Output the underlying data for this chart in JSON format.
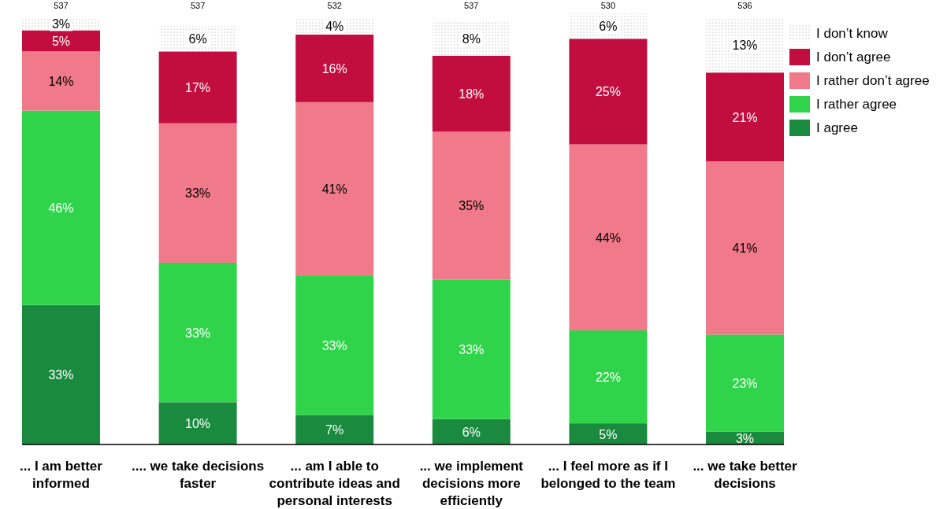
{
  "chart_data": {
    "type": "bar",
    "stacked": true,
    "legend": "top right",
    "tick_labels": "x",
    "categories": [
      "... I am better informed",
      ".... we take decisions faster",
      "... am I able to contribute ideas and personal interests",
      "... we implement decisions more efficiently",
      "... I feel more as if I belonged to the team",
      "... we take better decisions"
    ],
    "series": [
      {
        "name": "I agree",
        "color": "#1a8a3e",
        "values": [
          33,
          10,
          7,
          6,
          5,
          3
        ],
        "value_labels": [
          "33%",
          "10%",
          "7%",
          "6%",
          "5%",
          "3%"
        ]
      },
      {
        "name": "I rather agree",
        "color": "#2fd44a",
        "values": [
          46,
          33,
          33,
          33,
          22,
          23
        ],
        "value_labels": [
          "46%",
          "33%",
          "33%",
          "33%",
          "22%",
          "23%"
        ]
      },
      {
        "name": "I rather don’t agree",
        "color": "#f07a8a",
        "values": [
          14,
          33,
          41,
          35,
          44,
          41
        ],
        "value_labels": [
          "14%",
          "33%",
          "41%",
          "35%",
          "44%",
          "41%"
        ]
      },
      {
        "name": "I don’t agree",
        "color": "#c20e3e",
        "values": [
          5,
          17,
          16,
          18,
          25,
          21
        ],
        "value_labels": [
          "5%",
          "17%",
          "16%",
          "18%",
          "25%",
          "21%"
        ]
      },
      {
        "name": "I don’t know",
        "color": "#e6e6e6",
        "values": [
          3,
          6,
          4,
          8,
          6,
          13
        ],
        "value_labels": [
          "3%",
          "6%",
          "4%",
          "8%",
          "6%",
          "13%"
        ]
      }
    ],
    "annotations": [
      "537",
      "537",
      "532",
      "537",
      "530",
      "536"
    ]
  }
}
